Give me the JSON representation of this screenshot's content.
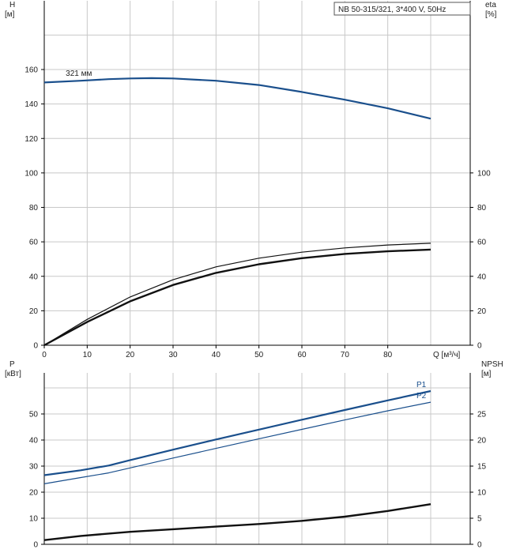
{
  "model_label": "NB 50-315/321, 3*400 V, 50Hz",
  "colors": {
    "blue": "#1a4f8c",
    "black": "#111111",
    "grid": "#c8c8c8"
  },
  "chart_data": [
    {
      "type": "line",
      "panel": "top",
      "left_axis_label": [
        "H",
        "[м]"
      ],
      "right_axis_label": [
        "eta",
        "[%]"
      ],
      "x_axis_label": "Q [м³/ч]",
      "xlim": [
        0,
        90
      ],
      "ylim_left": [
        0,
        180
      ],
      "ylim_right": [
        0,
        180
      ],
      "x_ticks": [
        0,
        10,
        20,
        30,
        40,
        50,
        60,
        70,
        80
      ],
      "y_ticks_left": [
        0,
        20,
        40,
        60,
        80,
        100,
        120,
        140,
        160
      ],
      "y_ticks_right": [
        0,
        20,
        40,
        60,
        80,
        100
      ],
      "grid": true,
      "annotations": [
        {
          "text": "321 мм",
          "x": 5,
          "y": 155
        }
      ],
      "series": [
        {
          "axis": "left",
          "color": "#1a4f8c",
          "width": 2.2,
          "x": [
            0,
            8.5,
            15,
            20,
            25,
            30,
            40,
            50,
            60,
            70,
            80,
            90
          ],
          "y": [
            152.5,
            153.5,
            154.4,
            154.8,
            155,
            154.8,
            153.5,
            151,
            147,
            142.5,
            137.5,
            131.5
          ]
        },
        {
          "axis": "right",
          "color": "#111111",
          "width": 1.2,
          "x": [
            0,
            10,
            20,
            30,
            40,
            50,
            60,
            70,
            80,
            90
          ],
          "y": [
            0,
            15,
            28,
            38,
            45.5,
            50.5,
            54,
            56.5,
            58.2,
            59.2
          ]
        },
        {
          "axis": "right",
          "color": "#111111",
          "width": 2.4,
          "x": [
            0,
            10,
            20,
            30,
            40,
            50,
            60,
            70,
            80,
            90
          ],
          "y": [
            0,
            13.5,
            25.5,
            35,
            42,
            47,
            50.5,
            53,
            54.5,
            55.5
          ]
        }
      ]
    },
    {
      "type": "line",
      "panel": "bottom",
      "left_axis_label": [
        "P",
        "[кВт]"
      ],
      "right_axis_label": [
        "NPSH",
        "[м]"
      ],
      "xlim": [
        0,
        90
      ],
      "ylim_left": [
        0,
        60
      ],
      "ylim_right": [
        0,
        30
      ],
      "y_ticks_left": [
        0,
        10,
        20,
        30,
        40,
        50
      ],
      "y_ticks_right": [
        0,
        5,
        10,
        15,
        20,
        25
      ],
      "grid": true,
      "series": [
        {
          "name": "P1",
          "axis": "left",
          "color": "#1a4f8c",
          "width": 2.2,
          "x": [
            0,
            8.5,
            15,
            20,
            30,
            40,
            50,
            60,
            70,
            80,
            90
          ],
          "y": [
            26.5,
            28.4,
            30.2,
            32.3,
            36.3,
            40.2,
            44,
            47.8,
            51.5,
            55.2,
            58.8
          ]
        },
        {
          "name": "P2",
          "axis": "left",
          "color": "#1a4f8c",
          "width": 1.2,
          "x": [
            0,
            8.5,
            15,
            20,
            30,
            40,
            50,
            60,
            70,
            80,
            90
          ],
          "y": [
            23.2,
            25.6,
            27.4,
            29.3,
            33.1,
            36.8,
            40.5,
            44.1,
            47.7,
            51.2,
            54.5
          ]
        },
        {
          "axis": "right",
          "color": "#111111",
          "width": 2.4,
          "x": [
            0,
            8.5,
            20,
            30,
            40,
            50,
            60,
            70,
            80,
            90
          ],
          "y": [
            0.8,
            1.6,
            2.4,
            2.9,
            3.4,
            3.9,
            4.5,
            5.3,
            6.4,
            7.7
          ]
        }
      ]
    }
  ]
}
